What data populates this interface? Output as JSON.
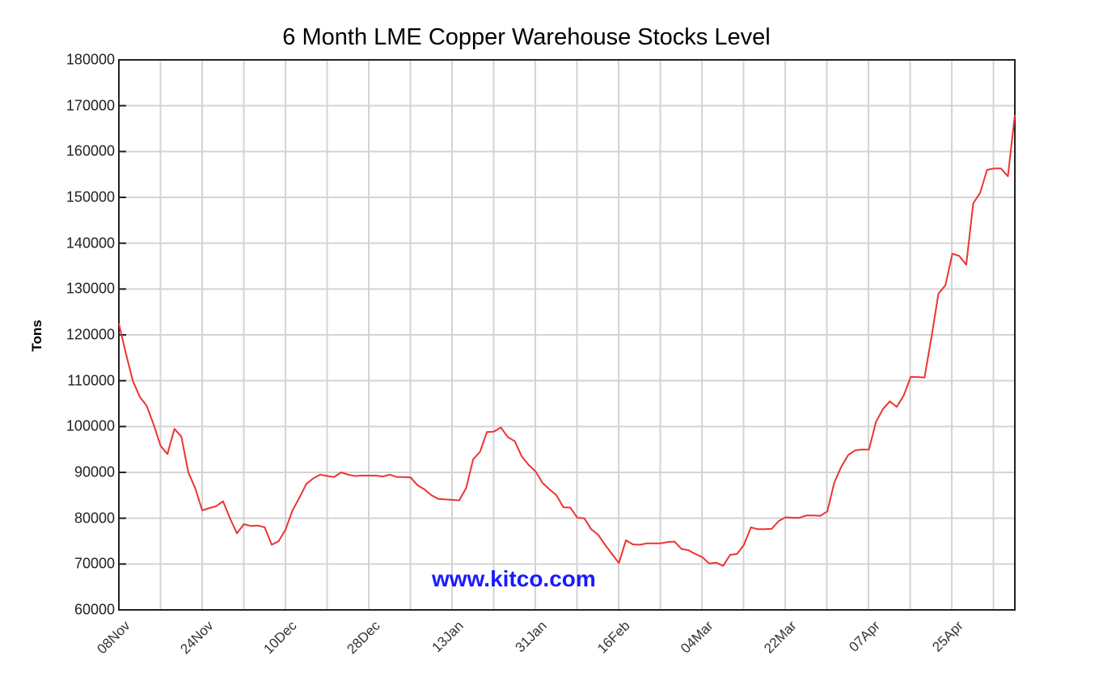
{
  "chart_data": {
    "type": "line",
    "title": "6 Month LME Copper Warehouse Stocks Level",
    "xlabel": "",
    "ylabel": "Tons",
    "ylim": [
      60000,
      180000
    ],
    "yticks": [
      60000,
      70000,
      80000,
      90000,
      100000,
      110000,
      120000,
      130000,
      140000,
      150000,
      160000,
      170000,
      180000
    ],
    "xtick_labels": [
      "08Nov",
      "24Nov",
      "10Dec",
      "28Dec",
      "13Jan",
      "31Jan",
      "16Feb",
      "04Mar",
      "22Mar",
      "07Apr",
      "25Apr"
    ],
    "grid": true,
    "legend": null,
    "watermark": "www.kitco.com",
    "series": [
      {
        "name": "LME Copper Warehouse Stocks",
        "color": "#ee3333",
        "values": [
          122500,
          116000,
          110000,
          106500,
          104500,
          100500,
          95800,
          94000,
          99500,
          97800,
          90000,
          86500,
          81700,
          82200,
          82600,
          83700,
          80000,
          76700,
          78700,
          78300,
          78400,
          78000,
          74200,
          75000,
          77500,
          81700,
          84500,
          87500,
          88700,
          89500,
          89200,
          89000,
          90000,
          89500,
          89200,
          89300,
          89300,
          89300,
          89100,
          89500,
          89000,
          89000,
          88900,
          87200,
          86300,
          85000,
          84200,
          84100,
          84000,
          83900,
          86600,
          92800,
          94500,
          98800,
          98900,
          99800,
          97700,
          96800,
          93500,
          91600,
          90200,
          87700,
          86300,
          85000,
          82400,
          82300,
          80100,
          80000,
          77600,
          76400,
          74200,
          72200,
          70200,
          75200,
          74300,
          74200,
          74500,
          74500,
          74500,
          74800,
          74900,
          73300,
          73000,
          72200,
          71500,
          70100,
          70300,
          69600,
          72000,
          72200,
          74200,
          78000,
          77600,
          77600,
          77700,
          79400,
          80200,
          80100,
          80100,
          80600,
          80600,
          80500,
          81500,
          87800,
          91200,
          93800,
          94800,
          95000,
          95000,
          101000,
          103800,
          105500,
          104300,
          106800,
          110800,
          110800,
          110700,
          119500,
          129000,
          130800,
          137700,
          137200,
          135300,
          148700,
          151000,
          156000,
          156300,
          156300,
          154600,
          168000
        ]
      }
    ]
  }
}
